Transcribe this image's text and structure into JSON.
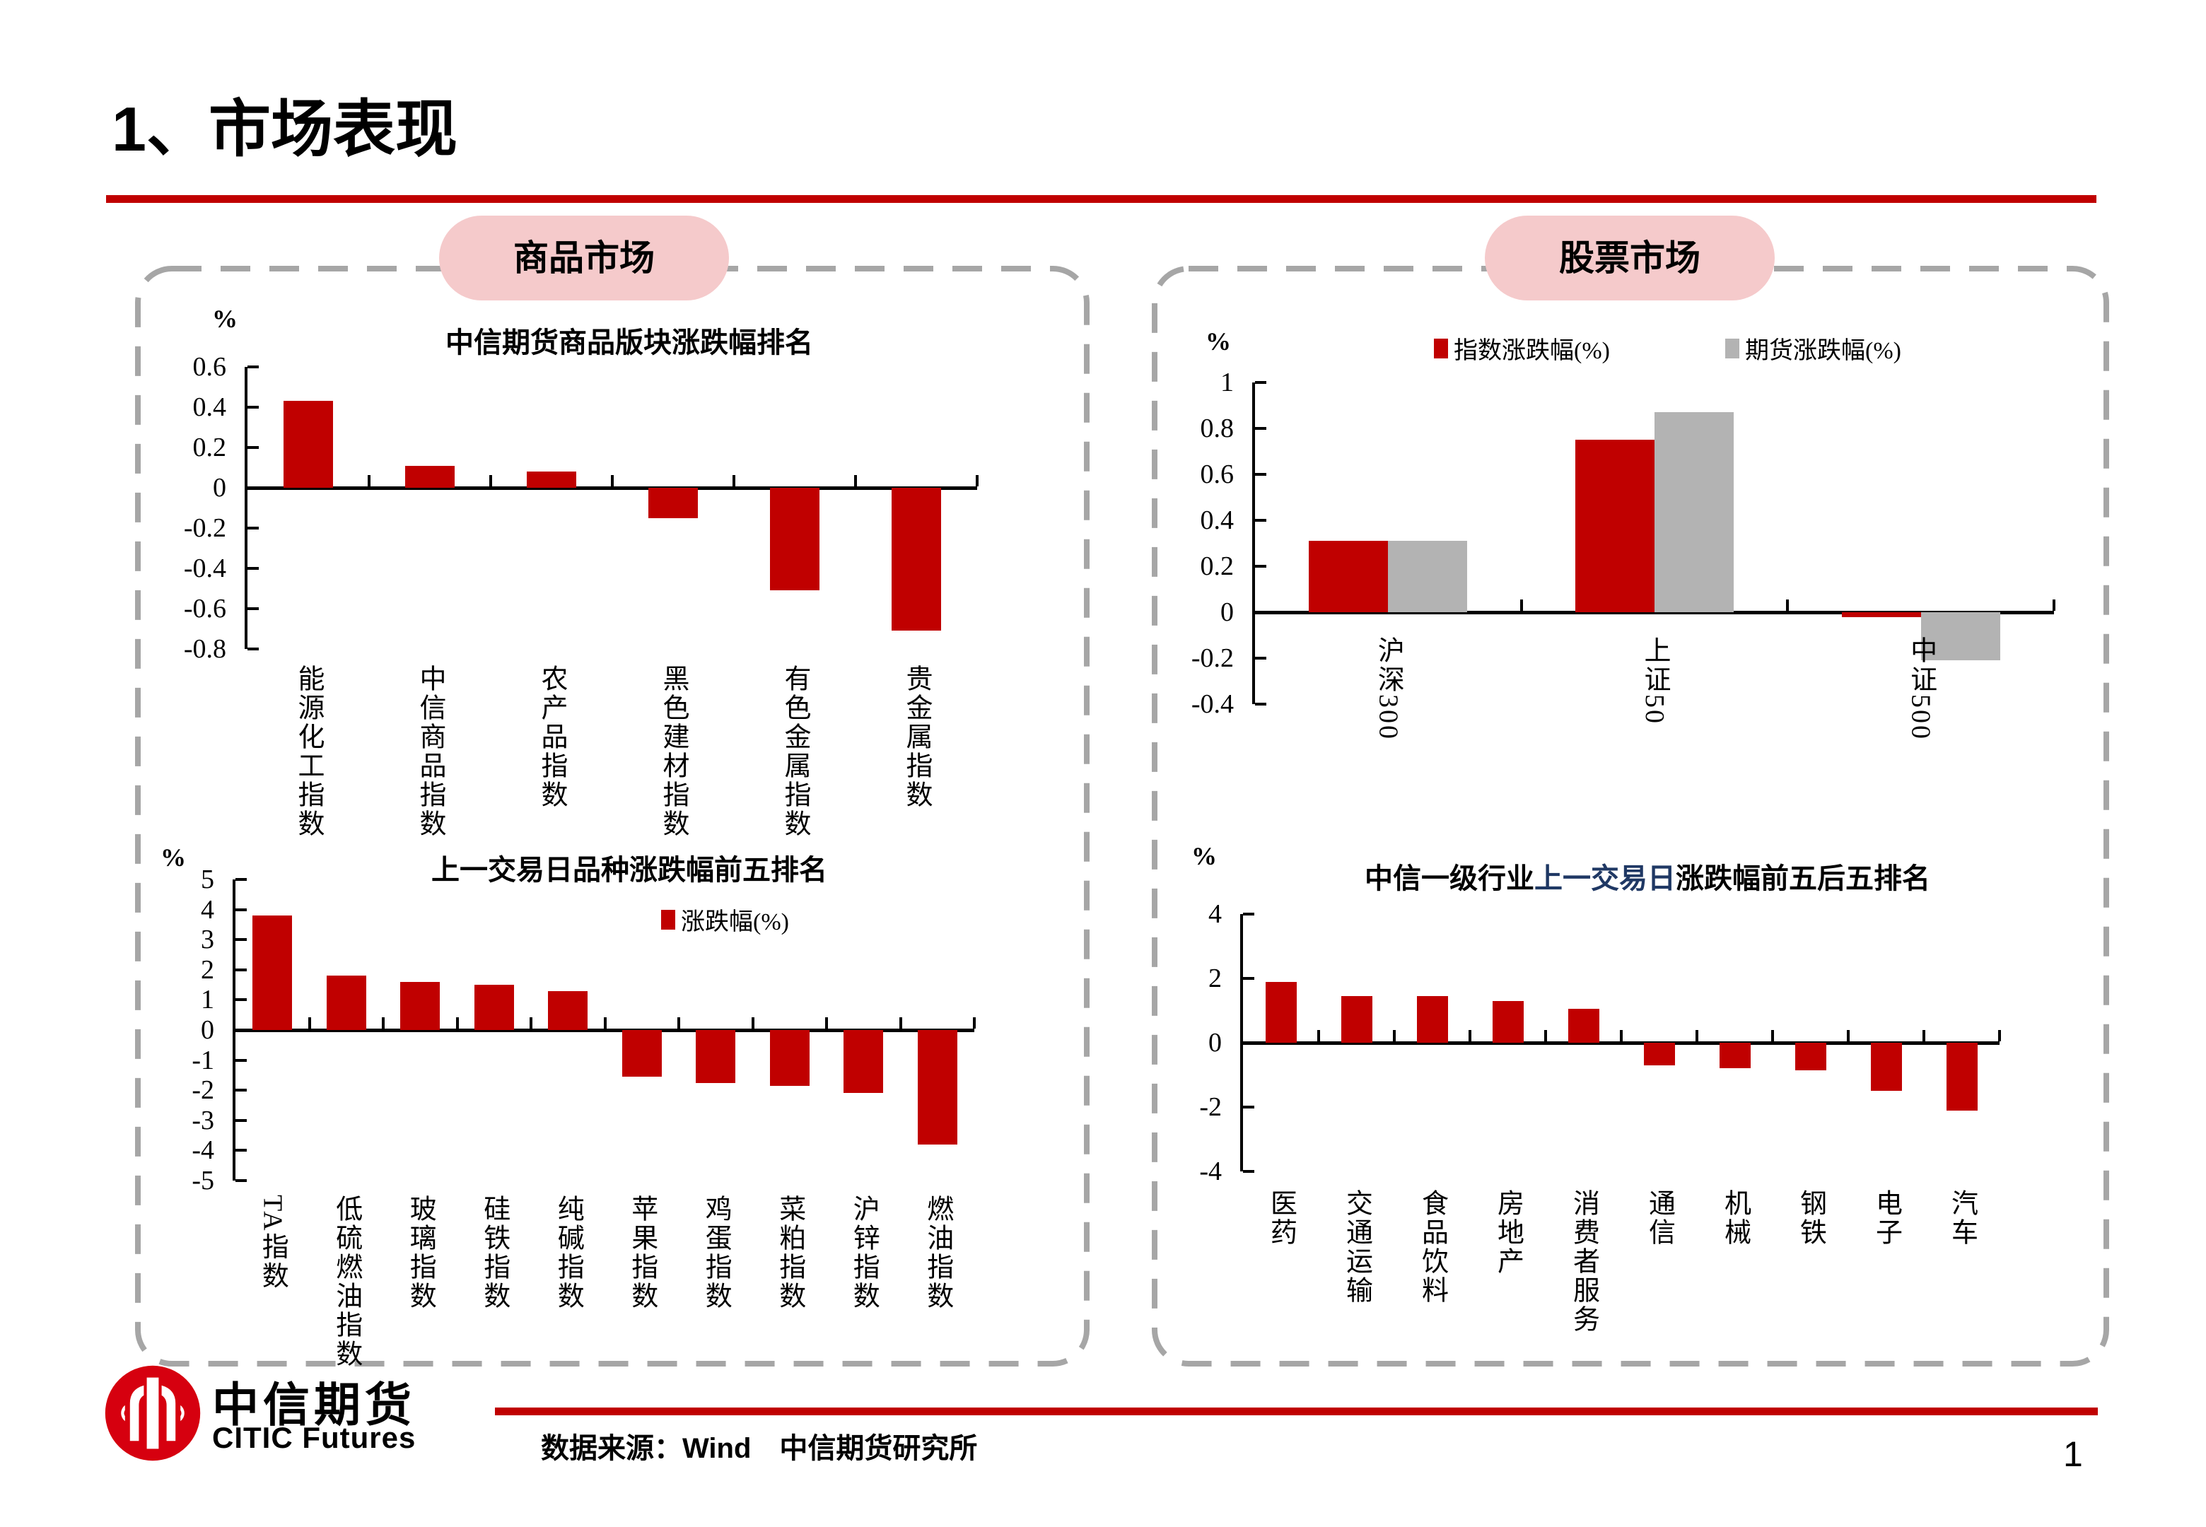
{
  "page": {
    "title": "1、市场表现",
    "page_number": "1",
    "section_labels": [
      "商品市场",
      "股票市场"
    ],
    "unit_label": "%",
    "footer": {
      "logo_cn": "中信期货",
      "logo_en": "CITIC Futures",
      "source_text": "数据来源：Wind　中信期货研究所"
    }
  },
  "colors": {
    "bar_red": "#C00000",
    "bar_gray": "#B3B3B3",
    "accent_red": "#C00000",
    "panel_border_gray": "#A6A6A6",
    "label_pink": "#F5CACB",
    "title_blue": "#1F3864",
    "logo_red": "#D6000F"
  },
  "chart_data": [
    {
      "id": "commodity_sectors",
      "type": "bar",
      "title": "中信期货商品版块涨跌幅排名",
      "unit": "%",
      "categories": [
        "能源化工指数",
        "中信商品指数",
        "农产品指数",
        "黑色建材指数",
        "有色金属指数",
        "贵金属指数"
      ],
      "values": [
        0.43,
        0.11,
        0.08,
        -0.15,
        -0.51,
        -0.71
      ],
      "ylim": [
        -0.8,
        0.6
      ],
      "ytick_step": 0.2,
      "bar_color": "#C00000",
      "grid": false,
      "legend": []
    },
    {
      "id": "commodity_products",
      "type": "bar",
      "title": "上一交易日品种涨跌幅前五排名",
      "unit": "%",
      "categories": [
        "TA指数",
        "低硫燃油指数",
        "玻璃指数",
        "硅铁指数",
        "纯碱指数",
        "苹果指数",
        "鸡蛋指数",
        "菜粕指数",
        "沪锌指数",
        "燃油指数"
      ],
      "values": [
        3.8,
        1.8,
        1.6,
        1.5,
        1.3,
        -1.55,
        -1.75,
        -1.85,
        -2.1,
        -3.8
      ],
      "ylim": [
        -5,
        5
      ],
      "ytick_step": 1,
      "bar_color": "#C00000",
      "grid": false,
      "legend": [
        {
          "label": "涨跌幅(%)",
          "color": "#C00000"
        }
      ]
    },
    {
      "id": "equity_indices",
      "type": "grouped_bar",
      "title": "",
      "unit": "%",
      "categories": [
        "沪深300",
        "上证50",
        "中证500"
      ],
      "series": [
        {
          "name": "指数涨跌幅(%)",
          "color": "#C00000",
          "values": [
            0.31,
            0.75,
            -0.02
          ]
        },
        {
          "name": "期货涨跌幅(%)",
          "color": "#B3B3B3",
          "values": [
            0.31,
            0.87,
            -0.21
          ]
        }
      ],
      "ylim": [
        -0.4,
        1.0
      ],
      "ytick_step": 0.2,
      "grid": false,
      "legend": [
        {
          "label": "指数涨跌幅(%)",
          "color": "#C00000"
        },
        {
          "label": "期货涨跌幅(%)",
          "color": "#B3B3B3"
        }
      ]
    },
    {
      "id": "citic_industries",
      "type": "bar",
      "title": "中信一级行业上一交易日涨跌幅前五后五排名",
      "title_parts": [
        {
          "text": "中信一级行业",
          "color": "#000000"
        },
        {
          "text": "上一交易日",
          "color": "#1F3864"
        },
        {
          "text": "涨跌幅前五后五排名",
          "color": "#000000"
        }
      ],
      "unit": "%",
      "categories": [
        "医药",
        "交通运输",
        "食品饮料",
        "房地产",
        "消费者服务",
        "通信",
        "机械",
        "钢铁",
        "电子",
        "汽车"
      ],
      "values": [
        1.9,
        1.45,
        1.45,
        1.3,
        1.05,
        -0.7,
        -0.8,
        -0.85,
        -1.5,
        -2.1
      ],
      "ylim": [
        -4,
        4
      ],
      "ytick_step": 2,
      "bar_color": "#C00000",
      "grid": false,
      "legend": []
    }
  ]
}
